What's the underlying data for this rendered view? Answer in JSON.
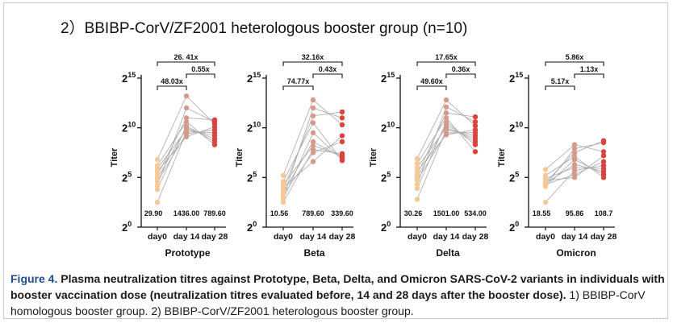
{
  "group_title": "2）BBIBP-CorV/ZF2001 heterologous booster group (n=10)",
  "caption": {
    "label": "Figure 4.",
    "bold": "Plasma neutralization titres against Prototype, Beta, Delta, and Omicron SARS-CoV-2 variants in individuals with booster vaccination dose (neutralization titres evaluated before, 14 and 28 days after the booster dose).",
    "normal": "1) BBIBP-CorV homologous booster group. 2) BBIBP-CorV/ZF2001 heterologous booster group."
  },
  "colors": {
    "day0": "#f5c896",
    "day14": "#d49a8a",
    "day28": "#d9443f",
    "line": "#a8a8a8",
    "axis": "#111111",
    "caption_label": "#1f4e8c"
  },
  "chart_data": [
    {
      "type": "scatter",
      "title": "Prototype",
      "ylabel": "Titer",
      "y_scale": "log2",
      "ylim": [
        0,
        15
      ],
      "yticks": [
        0,
        5,
        10,
        15
      ],
      "yticklabels": [
        "2",
        "2",
        "2",
        "2"
      ],
      "ytick_exponents": [
        "0",
        "5",
        "10",
        "15"
      ],
      "categories": [
        "day0",
        "day 14",
        "day 28"
      ],
      "medians": [
        "29.90",
        "1436.00",
        "789.60"
      ],
      "brackets": [
        {
          "label": "26. 41x",
          "from": 0,
          "to": 2,
          "level": 2
        },
        {
          "label": "0.55x",
          "from": 1,
          "to": 2,
          "level": 1
        },
        {
          "label": "48.03x",
          "from": 0,
          "to": 1,
          "level": 0
        }
      ],
      "series": [
        {
          "name": "day0",
          "values": [
            6.8,
            6.2,
            5.9,
            5.6,
            5.2,
            4.9,
            4.6,
            4.2,
            3.8,
            2.5
          ]
        },
        {
          "name": "day 14",
          "values": [
            13.2,
            12.0,
            11.0,
            10.6,
            10.2,
            10.0,
            9.8,
            9.6,
            9.4,
            9.1
          ]
        },
        {
          "name": "day 28",
          "values": [
            10.8,
            10.6,
            10.4,
            10.1,
            9.8,
            9.5,
            9.2,
            8.9,
            8.6,
            8.3
          ]
        }
      ]
    },
    {
      "type": "scatter",
      "title": "Beta",
      "ylabel": "Titer",
      "y_scale": "log2",
      "ylim": [
        0,
        15
      ],
      "yticks": [
        0,
        5,
        10,
        15
      ],
      "yticklabels": [
        "2",
        "2",
        "2",
        "2"
      ],
      "ytick_exponents": [
        "0",
        "5",
        "10",
        "15"
      ],
      "categories": [
        "day0",
        "day 14",
        "day 28"
      ],
      "medians": [
        "10.56",
        "789.60",
        "339.60"
      ],
      "brackets": [
        {
          "label": "32.16x",
          "from": 0,
          "to": 2,
          "level": 2
        },
        {
          "label": "0.43x",
          "from": 1,
          "to": 2,
          "level": 1
        },
        {
          "label": "74.77x",
          "from": 0,
          "to": 1,
          "level": 0
        }
      ],
      "series": [
        {
          "name": "day0",
          "values": [
            5.2,
            4.6,
            4.3,
            4.0,
            3.8,
            3.5,
            3.3,
            3.0,
            2.8,
            2.5
          ]
        },
        {
          "name": "day 14",
          "values": [
            12.8,
            12.0,
            11.2,
            10.5,
            9.5,
            8.6,
            8.2,
            7.8,
            7.5,
            6.6
          ]
        },
        {
          "name": "day 28",
          "values": [
            11.6,
            11.0,
            10.3,
            9.2,
            8.6,
            7.4,
            7.2,
            7.0,
            6.8,
            6.7
          ]
        }
      ]
    },
    {
      "type": "scatter",
      "title": "Delta",
      "ylabel": "Titer",
      "y_scale": "log2",
      "ylim": [
        0,
        15
      ],
      "yticks": [
        0,
        5,
        10,
        15
      ],
      "yticklabels": [
        "2",
        "2",
        "2",
        "2"
      ],
      "ytick_exponents": [
        "0",
        "5",
        "10",
        "15"
      ],
      "categories": [
        "day0",
        "day 14",
        "day 28"
      ],
      "medians": [
        "30.26",
        "1501.00",
        "534.00"
      ],
      "brackets": [
        {
          "label": "17.65x",
          "from": 0,
          "to": 2,
          "level": 2
        },
        {
          "label": "0.36x",
          "from": 1,
          "to": 2,
          "level": 1
        },
        {
          "label": "49.60x",
          "from": 0,
          "to": 1,
          "level": 0
        }
      ],
      "series": [
        {
          "name": "day0",
          "values": [
            6.9,
            6.4,
            6.0,
            5.6,
            5.3,
            5.0,
            4.7,
            4.3,
            3.9,
            2.8
          ]
        },
        {
          "name": "day 14",
          "values": [
            12.8,
            12.1,
            11.5,
            11.0,
            10.6,
            10.3,
            10.0,
            9.8,
            9.5,
            9.3
          ]
        },
        {
          "name": "day 28",
          "values": [
            11.1,
            10.6,
            10.2,
            9.8,
            9.5,
            9.2,
            8.9,
            8.6,
            8.3,
            7.6
          ]
        }
      ]
    },
    {
      "type": "scatter",
      "title": "Omicron",
      "ylabel": "Titer",
      "y_scale": "log2",
      "ylim": [
        0,
        15
      ],
      "yticks": [
        0,
        5,
        10,
        15
      ],
      "yticklabels": [
        "2",
        "2",
        "2",
        "2"
      ],
      "ytick_exponents": [
        "0",
        "5",
        "10",
        "15"
      ],
      "categories": [
        "day0",
        "day 14",
        "day 28"
      ],
      "medians": [
        "18.55",
        "95.86",
        "108.7"
      ],
      "brackets": [
        {
          "label": "5.86x",
          "from": 0,
          "to": 2,
          "level": 2
        },
        {
          "label": "1.13x",
          "from": 1,
          "to": 2,
          "level": 1
        },
        {
          "label": "5.17x",
          "from": 0,
          "to": 1,
          "level": 0
        }
      ],
      "series": [
        {
          "name": "day0",
          "values": [
            5.8,
            5.2,
            4.9,
            4.7,
            4.5,
            4.4,
            4.3,
            4.2,
            4.1,
            2.5
          ]
        },
        {
          "name": "day 14",
          "values": [
            8.3,
            7.9,
            7.5,
            7.1,
            6.8,
            6.3,
            6.0,
            5.7,
            5.3,
            5.0
          ]
        },
        {
          "name": "day 28",
          "values": [
            8.7,
            8.5,
            7.6,
            7.2,
            6.6,
            6.2,
            5.9,
            5.6,
            5.3,
            5.0
          ]
        }
      ]
    }
  ]
}
